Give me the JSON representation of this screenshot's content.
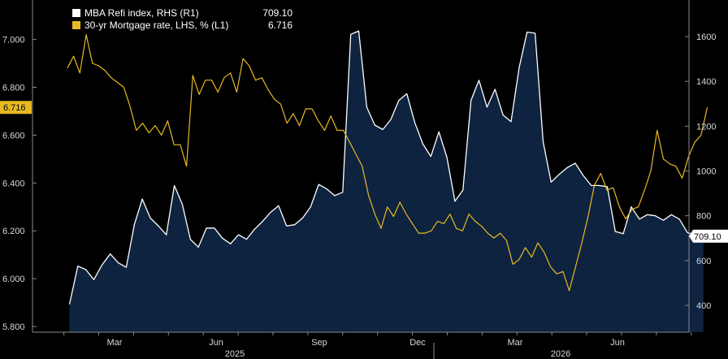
{
  "chart_data": {
    "type": "area",
    "legend_position": "top-left",
    "legend": [
      {
        "name": "MBA Refi index, RHS (R1)",
        "last": "709.10",
        "color": "#ffffff"
      },
      {
        "name": "30-yr Mortgage rate, LHS, % (L1)",
        "last": "6.716",
        "color": "#e8b923"
      }
    ],
    "last_value_tags": {
      "left": "6.716",
      "right": "709.10"
    },
    "colors": {
      "area_fill": "#0e2340",
      "refi_line": "#ffffff",
      "rate_line": "#e8b923",
      "background": "#000000"
    },
    "x_axis": {
      "month_ticks": [
        "Mar",
        "Jun",
        "Sep",
        "Dec",
        "Mar",
        "Jun"
      ],
      "year_labels": [
        "2025",
        "2026"
      ]
    },
    "left_axis": {
      "range": [
        5.78,
        7.12
      ],
      "ticks": [
        "5.800",
        "6.000",
        "6.200",
        "6.400",
        "6.600",
        "6.800",
        "7.000"
      ]
    },
    "right_axis": {
      "range": [
        260,
        1700
      ],
      "ticks": [
        "400",
        "600",
        "800",
        "1000",
        "1200",
        "1400",
        "1600"
      ]
    },
    "x_range_months": [
      0.1,
      18.55
    ],
    "series": [
      {
        "name": "MBA Refi index, RHS (R1)",
        "axis": "right",
        "x": [
          0.16,
          0.4,
          0.63,
          0.86,
          1.09,
          1.33,
          1.56,
          1.79,
          2.02,
          2.25,
          2.48,
          2.71,
          2.94,
          3.17,
          3.4,
          3.63,
          3.86,
          4.09,
          4.32,
          4.55,
          4.78,
          5.01,
          5.24,
          5.47,
          5.7,
          5.93,
          6.16,
          6.39,
          6.62,
          6.85,
          7.08,
          7.31,
          7.54,
          7.77,
          8.0,
          8.23,
          8.46,
          8.69,
          8.92,
          9.15,
          9.38,
          9.61,
          9.84,
          10.07,
          10.3,
          10.53,
          10.76,
          10.99,
          11.22,
          11.45,
          11.68,
          11.91,
          12.14,
          12.37,
          12.6,
          12.83,
          13.06,
          13.29,
          13.52,
          13.75,
          13.98,
          14.21,
          14.44,
          14.67,
          14.9,
          15.13,
          15.36,
          15.59,
          15.82,
          16.05,
          16.28,
          16.51,
          16.74,
          16.97,
          17.2,
          17.43,
          17.66,
          17.89,
          18.12,
          18.35
        ],
        "values": [
          405,
          575,
          560,
          515,
          580,
          630,
          590,
          570,
          760,
          875,
          790,
          755,
          715,
          935,
          850,
          695,
          660,
          745,
          745,
          700,
          675,
          715,
          695,
          740,
          775,
          815,
          845,
          755,
          760,
          790,
          840,
          940,
          920,
          890,
          905,
          1610,
          1625,
          1285,
          1205,
          1185,
          1230,
          1315,
          1345,
          1215,
          1120,
          1065,
          1175,
          1060,
          865,
          915,
          1315,
          1405,
          1285,
          1365,
          1250,
          1220,
          1460,
          1620,
          1615,
          1130,
          950,
          985,
          1015,
          1035,
          980,
          935,
          935,
          930,
          730,
          720,
          840,
          785,
          805,
          800,
          780,
          805,
          785,
          725,
          715,
          709.1
        ]
      },
      {
        "name": "30-yr Mortgage rate, LHS, % (L1)",
        "axis": "left",
        "x": [
          0.1,
          0.28,
          0.46,
          0.64,
          0.82,
          1.0,
          1.18,
          1.36,
          1.54,
          1.72,
          1.9,
          2.08,
          2.26,
          2.44,
          2.62,
          2.8,
          2.98,
          3.16,
          3.34,
          3.52,
          3.7,
          3.88,
          4.06,
          4.24,
          4.42,
          4.6,
          4.78,
          4.96,
          5.14,
          5.32,
          5.5,
          5.68,
          5.86,
          6.04,
          6.22,
          6.4,
          6.58,
          6.76,
          6.94,
          7.12,
          7.3,
          7.48,
          7.66,
          7.84,
          8.02,
          8.2,
          8.38,
          8.56,
          8.74,
          8.92,
          9.1,
          9.28,
          9.46,
          9.64,
          9.82,
          10.0,
          10.18,
          10.36,
          10.54,
          10.72,
          10.9,
          11.08,
          11.26,
          11.44,
          11.62,
          11.8,
          11.98,
          12.16,
          12.34,
          12.52,
          12.7,
          12.88,
          13.06,
          13.24,
          13.42,
          13.6,
          13.78,
          13.96,
          14.14,
          14.32,
          14.5,
          14.68,
          14.86,
          15.04,
          15.22,
          15.4,
          15.58,
          15.76,
          15.94,
          16.12,
          16.3,
          16.48,
          16.66,
          16.84,
          17.02,
          17.2,
          17.38,
          17.56,
          17.74,
          17.92,
          18.1,
          18.28,
          18.46
        ],
        "values": [
          6.88,
          6.93,
          6.86,
          7.02,
          6.9,
          6.89,
          6.87,
          6.84,
          6.82,
          6.8,
          6.72,
          6.62,
          6.65,
          6.61,
          6.64,
          6.6,
          6.66,
          6.56,
          6.56,
          6.47,
          6.85,
          6.77,
          6.83,
          6.83,
          6.78,
          6.84,
          6.86,
          6.78,
          6.92,
          6.89,
          6.83,
          6.84,
          6.79,
          6.75,
          6.73,
          6.65,
          6.69,
          6.64,
          6.71,
          6.71,
          6.66,
          6.62,
          6.68,
          6.62,
          6.62,
          6.57,
          6.52,
          6.47,
          6.35,
          6.27,
          6.21,
          6.3,
          6.26,
          6.32,
          6.27,
          6.23,
          6.19,
          6.19,
          6.2,
          6.24,
          6.23,
          6.27,
          6.21,
          6.2,
          6.27,
          6.24,
          6.22,
          6.19,
          6.17,
          6.19,
          6.16,
          6.06,
          6.08,
          6.13,
          6.09,
          6.15,
          6.11,
          6.05,
          6.02,
          6.03,
          5.95,
          6.05,
          6.15,
          6.26,
          6.39,
          6.44,
          6.37,
          6.38,
          6.3,
          6.25,
          6.29,
          6.3,
          6.37,
          6.45,
          6.62,
          6.5,
          6.48,
          6.47,
          6.42,
          6.51,
          6.57,
          6.6,
          6.716
        ]
      }
    ]
  }
}
